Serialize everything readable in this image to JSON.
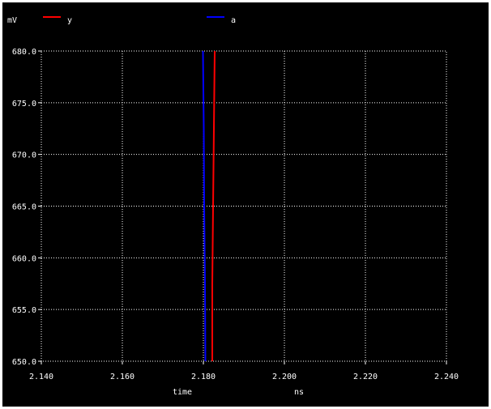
{
  "chart_data": {
    "type": "line",
    "y_unit": "mV",
    "x_unit": "ns",
    "xlabel": "time",
    "xlim": [
      2.14,
      2.24
    ],
    "ylim": [
      650.0,
      680.0
    ],
    "x_ticks": [
      2.14,
      2.16,
      2.18,
      2.2,
      2.22,
      2.24
    ],
    "x_tick_labels": [
      "2.140",
      "2.160",
      "2.180",
      "2.200",
      "2.220",
      "2.240"
    ],
    "y_ticks": [
      650,
      655,
      660,
      665,
      670,
      675,
      680
    ],
    "y_tick_labels": [
      "650.0",
      "655.0",
      "660.0",
      "665.0",
      "670.0",
      "675.0",
      "680.0"
    ],
    "grid": true,
    "legend_position": "top",
    "series": [
      {
        "name": "y",
        "color": "#ff0000",
        "points": [
          [
            2.1822,
            650.0
          ],
          [
            2.1822,
            657.5
          ],
          [
            2.1824,
            665.0
          ],
          [
            2.1826,
            672.5
          ],
          [
            2.1828,
            680.0
          ]
        ]
      },
      {
        "name": "a",
        "color": "#0000ff",
        "points": [
          [
            2.1805,
            650.0
          ],
          [
            2.1804,
            657.5
          ],
          [
            2.1802,
            665.0
          ],
          [
            2.1801,
            672.5
          ],
          [
            2.1799,
            680.0
          ]
        ]
      }
    ]
  }
}
